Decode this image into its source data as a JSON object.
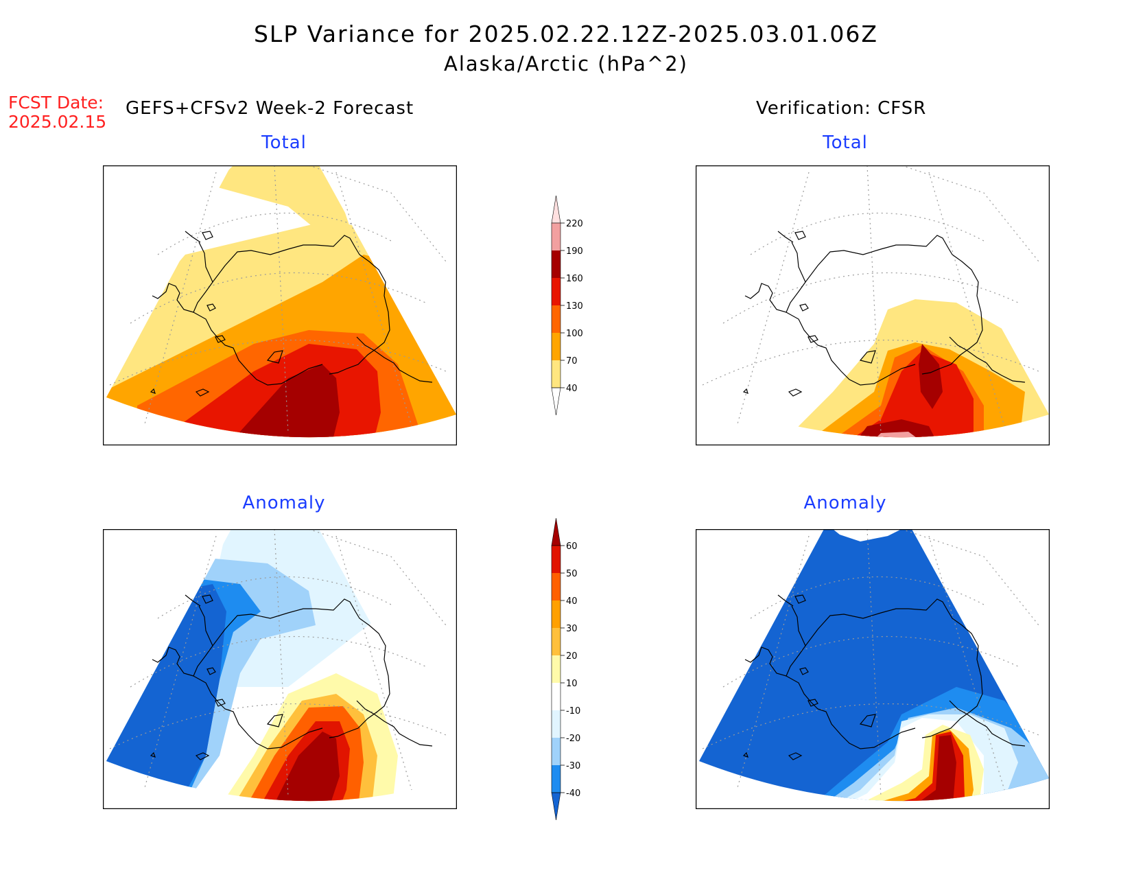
{
  "title": {
    "line1": "SLP Variance for 2025.02.22.12Z-2025.03.01.06Z",
    "line2": "Alaska/Arctic (hPa^2)"
  },
  "fcst_date": {
    "label": "FCST Date:",
    "value": "2025.02.15"
  },
  "left_header": "GEFS+CFSv2 Week-2 Forecast",
  "right_header": "Verification: CFSR",
  "panels": {
    "forecast_total": {
      "label": "Total"
    },
    "verification_total": {
      "label": "Total"
    },
    "forecast_anomaly": {
      "label": "Anomaly"
    },
    "verification_anomaly": {
      "label": "Anomaly"
    }
  },
  "colorbars": {
    "total": {
      "levels": [
        "40",
        "70",
        "100",
        "130",
        "160",
        "190",
        "220"
      ],
      "colors": [
        "#ffe680",
        "#ffa500",
        "#ff6600",
        "#e81500",
        "#a50000",
        "#f2a0a0",
        "#ffe0e0"
      ]
    },
    "anomaly": {
      "levels": [
        "-40",
        "-30",
        "-20",
        "-10",
        "10",
        "20",
        "30",
        "40",
        "50",
        "60"
      ],
      "colors": [
        "#1464d2",
        "#1e8cf0",
        "#a0d2fa",
        "#e1f5ff",
        "#ffffff",
        "#fffaaa",
        "#ffc03c",
        "#ffa000",
        "#ff6000",
        "#e11400",
        "#a50000"
      ]
    }
  }
}
